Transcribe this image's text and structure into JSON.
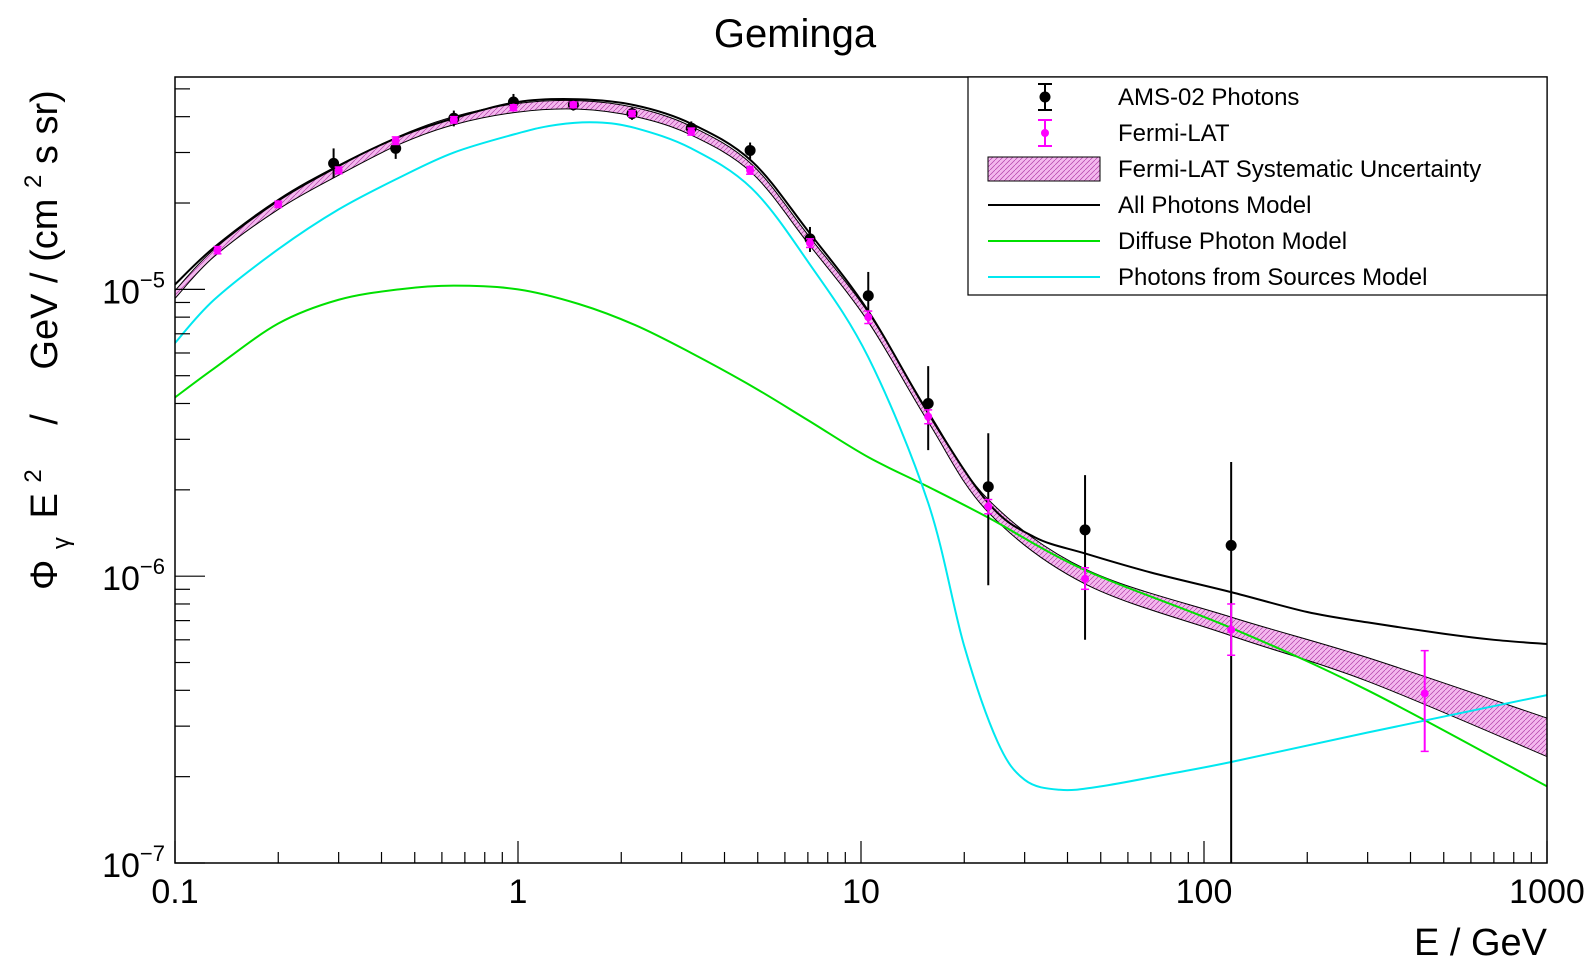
{
  "chart_data": {
    "type": "line",
    "title": "Geminga",
    "xlabel": "E / GeV",
    "ylabel_parts": {
      "phi": "Φ",
      "phi_sub": "γ",
      "e": "E",
      "e_exp": "2",
      "sep1": "/",
      "unit": "GeV / (cm",
      "unit_exp": "2",
      "unit_tail": " s sr)"
    },
    "x_scale": "log",
    "y_scale": "log",
    "xlim": [
      0.1,
      1000
    ],
    "ylim": [
      1e-07,
      5.5e-05
    ],
    "x_ticks": [
      {
        "value": 0.1,
        "label": "0.1"
      },
      {
        "value": 1,
        "label": "1"
      },
      {
        "value": 10,
        "label": "10"
      },
      {
        "value": 100,
        "label": "100"
      },
      {
        "value": 1000,
        "label": "1000"
      }
    ],
    "y_ticks": [
      {
        "value": 1e-07,
        "base": "10",
        "exp": "−7"
      },
      {
        "value": 1e-06,
        "base": "10",
        "exp": "−6"
      },
      {
        "value": 1e-05,
        "base": "10",
        "exp": "−5"
      }
    ],
    "legend_position": "top-right",
    "colors": {
      "ams": "#000000",
      "fermi": "#ff00ff",
      "band_fill": "#f4b8ee",
      "all": "#000000",
      "diffuse": "#00e000",
      "sources": "#00e8f0"
    },
    "series": [
      {
        "name": "AMS-02 Photons",
        "kind": "points",
        "color": "#000000",
        "points": [
          {
            "x": 0.29,
            "y": 2.75e-05,
            "lo": 2.45e-05,
            "hi": 3.1e-05
          },
          {
            "x": 0.44,
            "y": 3.1e-05,
            "lo": 2.85e-05,
            "hi": 3.4e-05
          },
          {
            "x": 0.65,
            "y": 3.95e-05,
            "lo": 3.7e-05,
            "hi": 4.2e-05
          },
          {
            "x": 0.97,
            "y": 4.5e-05,
            "lo": 4.25e-05,
            "hi": 4.8e-05
          },
          {
            "x": 1.45,
            "y": 4.4e-05,
            "lo": 4.2e-05,
            "hi": 4.6e-05
          },
          {
            "x": 2.15,
            "y": 4.1e-05,
            "lo": 3.9e-05,
            "hi": 4.3e-05
          },
          {
            "x": 3.2,
            "y": 3.65e-05,
            "lo": 3.45e-05,
            "hi": 3.85e-05
          },
          {
            "x": 4.75,
            "y": 3.05e-05,
            "lo": 2.85e-05,
            "hi": 3.25e-05
          },
          {
            "x": 7.1,
            "y": 1.5e-05,
            "lo": 1.35e-05,
            "hi": 1.65e-05
          },
          {
            "x": 10.5,
            "y": 9.5e-06,
            "lo": 7.8e-06,
            "hi": 1.15e-05
          },
          {
            "x": 15.7,
            "y": 4e-06,
            "lo": 2.75e-06,
            "hi": 5.4e-06
          },
          {
            "x": 23.5,
            "y": 2.05e-06,
            "lo": 9.3e-07,
            "hi": 3.15e-06
          },
          {
            "x": 45,
            "y": 1.45e-06,
            "lo": 6e-07,
            "hi": 2.25e-06
          },
          {
            "x": 120,
            "y": 1.28e-06,
            "lo": 1e-07,
            "hi": 2.5e-06
          }
        ]
      },
      {
        "name": "Fermi-LAT",
        "kind": "points",
        "color": "#ff00ff",
        "points": [
          {
            "x": 0.133,
            "y": 1.37e-05,
            "lo": 1.33e-05,
            "hi": 1.41e-05
          },
          {
            "x": 0.2,
            "y": 1.98e-05,
            "lo": 1.93e-05,
            "hi": 2.03e-05
          },
          {
            "x": 0.3,
            "y": 2.6e-05,
            "lo": 2.53e-05,
            "hi": 2.67e-05
          },
          {
            "x": 0.44,
            "y": 3.3e-05,
            "lo": 3.2e-05,
            "hi": 3.4e-05
          },
          {
            "x": 0.65,
            "y": 3.9e-05,
            "lo": 3.8e-05,
            "hi": 4e-05
          },
          {
            "x": 0.97,
            "y": 4.3e-05,
            "lo": 4.2e-05,
            "hi": 4.4e-05
          },
          {
            "x": 1.45,
            "y": 4.4e-05,
            "lo": 4.3e-05,
            "hi": 4.5e-05
          },
          {
            "x": 2.15,
            "y": 4.1e-05,
            "lo": 4e-05,
            "hi": 4.2e-05
          },
          {
            "x": 3.2,
            "y": 3.55e-05,
            "lo": 3.45e-05,
            "hi": 3.65e-05
          },
          {
            "x": 4.75,
            "y": 2.6e-05,
            "lo": 2.52e-05,
            "hi": 2.68e-05
          },
          {
            "x": 7.1,
            "y": 1.45e-05,
            "lo": 1.4e-05,
            "hi": 1.5e-05
          },
          {
            "x": 10.5,
            "y": 8e-06,
            "lo": 7.6e-06,
            "hi": 8.4e-06
          },
          {
            "x": 15.7,
            "y": 3.6e-06,
            "lo": 3.4e-06,
            "hi": 3.8e-06
          },
          {
            "x": 23.5,
            "y": 1.75e-06,
            "lo": 1.65e-06,
            "hi": 1.85e-06
          },
          {
            "x": 45,
            "y": 9.8e-07,
            "lo": 9e-07,
            "hi": 1.07e-06
          },
          {
            "x": 120,
            "y": 6.5e-07,
            "lo": 5.3e-07,
            "hi": 8e-07
          },
          {
            "x": 440,
            "y": 3.9e-07,
            "lo": 2.45e-07,
            "hi": 5.5e-07
          }
        ]
      },
      {
        "name": "Fermi-LAT Systematic Uncertainty",
        "kind": "band",
        "color": "#f4b8ee",
        "x": [
          0.1,
          0.13,
          0.2,
          0.3,
          0.45,
          0.65,
          1.0,
          1.5,
          2.2,
          3.2,
          4.8,
          7.0,
          10.5,
          15.7,
          23.5,
          45,
          120,
          300,
          1000
        ],
        "lo": [
          9.3e-06,
          1.3e-05,
          1.9e-05,
          2.5e-05,
          3.2e-05,
          3.75e-05,
          4.15e-05,
          4.25e-05,
          4e-05,
          3.45e-05,
          2.55e-05,
          1.45e-05,
          7.7e-06,
          3.45e-06,
          1.67e-06,
          9.4e-07,
          6.2e-07,
          4.3e-07,
          2.35e-07
        ],
        "hi": [
          9.9e-06,
          1.38e-05,
          2.03e-05,
          2.68e-05,
          3.42e-05,
          4e-05,
          4.45e-05,
          4.55e-05,
          4.3e-05,
          3.7e-05,
          2.73e-05,
          1.55e-05,
          8.3e-06,
          3.75e-06,
          1.85e-06,
          1.06e-06,
          7.2e-07,
          5.2e-07,
          3.2e-07
        ]
      },
      {
        "name": "All Photons Model",
        "kind": "line",
        "color": "#000000",
        "x": [
          0.1,
          0.13,
          0.2,
          0.3,
          0.45,
          0.65,
          1.0,
          1.5,
          2.2,
          3.2,
          4.8,
          7.0,
          10.5,
          15.7,
          23.5,
          32,
          45,
          70,
          120,
          200,
          300,
          500,
          700,
          1000
        ],
        "y": [
          1.04e-05,
          1.4e-05,
          2.05e-05,
          2.7e-05,
          3.4e-05,
          3.95e-05,
          4.5e-05,
          4.6e-05,
          4.38e-05,
          3.78e-05,
          2.8e-05,
          1.6e-05,
          8.4e-06,
          3.7e-06,
          1.8e-06,
          1.37e-06,
          1.2e-06,
          1.03e-06,
          8.8e-07,
          7.5e-07,
          6.9e-07,
          6.3e-07,
          6e-07,
          5.8e-07
        ]
      },
      {
        "name": "Diffuse Photon Model",
        "kind": "line",
        "color": "#00e000",
        "x": [
          0.1,
          0.13,
          0.2,
          0.3,
          0.45,
          0.65,
          1.0,
          1.5,
          2.2,
          3.2,
          4.8,
          7.0,
          10.5,
          15.7,
          23.5,
          45,
          120,
          300,
          1000
        ],
        "y": [
          4.2e-06,
          5.3e-06,
          7.6e-06,
          9.2e-06,
          1e-05,
          1.03e-05,
          1e-05,
          8.9e-06,
          7.5e-06,
          6e-06,
          4.6e-06,
          3.5e-06,
          2.6e-06,
          2.05e-06,
          1.6e-06,
          1.05e-06,
          6.6e-07,
          4e-07,
          1.85e-07
        ]
      },
      {
        "name": "Photons from Sources Model",
        "kind": "line",
        "color": "#00e8f0",
        "x": [
          0.1,
          0.13,
          0.2,
          0.3,
          0.45,
          0.65,
          1.0,
          1.3,
          1.7,
          2.2,
          3.2,
          4.8,
          7.0,
          10.5,
          15.7,
          20,
          25,
          30,
          38,
          50,
          80,
          120,
          300,
          1000
        ],
        "y": [
          6.5e-06,
          9.2e-06,
          1.38e-05,
          1.9e-05,
          2.45e-05,
          3e-05,
          3.5e-05,
          3.75e-05,
          3.82e-05,
          3.65e-05,
          3.1e-05,
          2.25e-05,
          1.25e-05,
          5.8e-06,
          1.8e-06,
          5.7e-07,
          2.65e-07,
          1.95e-07,
          1.8e-07,
          1.85e-07,
          2.05e-07,
          2.25e-07,
          2.85e-07,
          3.85e-07
        ]
      }
    ]
  }
}
